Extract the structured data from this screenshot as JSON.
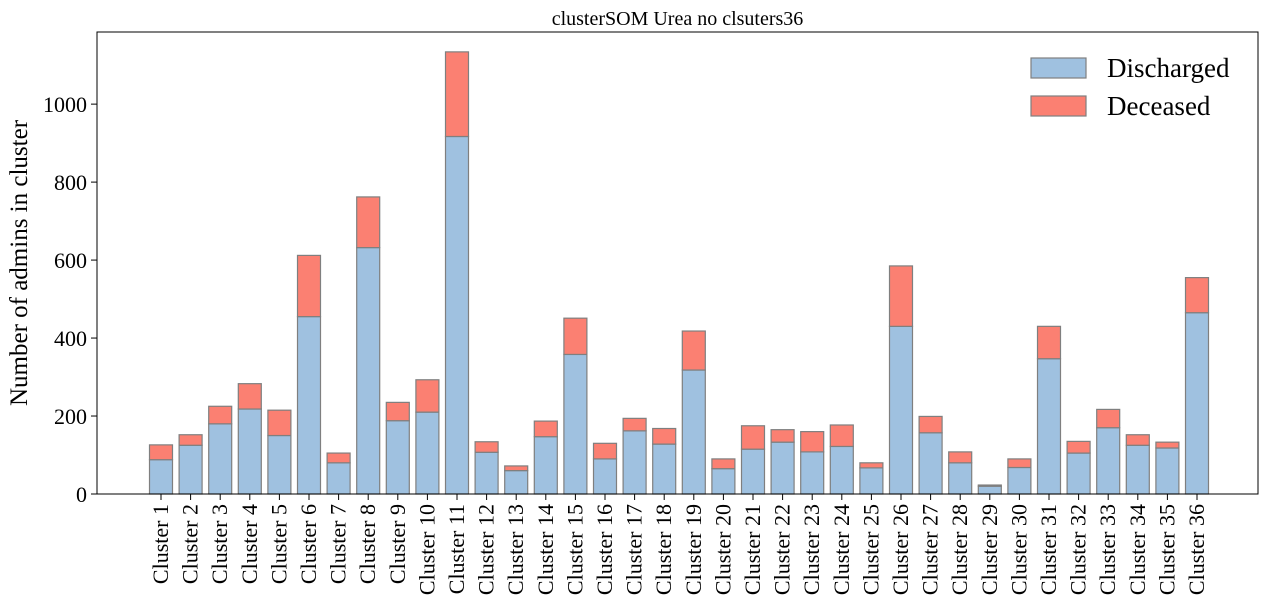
{
  "chart_data": {
    "type": "bar",
    "stacked": true,
    "title": "clusterSOM Urea no clsuters36",
    "xlabel": "",
    "ylabel": "Number of admins in cluster",
    "ylim": [
      0,
      1185
    ],
    "yticks": [
      0,
      200,
      400,
      600,
      800,
      1000
    ],
    "grid": false,
    "legend_position": "top-right",
    "categories": [
      "Cluster 1",
      "Cluster 2",
      "Cluster 3",
      "Cluster 4",
      "Cluster 5",
      "Cluster 6",
      "Cluster 7",
      "Cluster 8",
      "Cluster 9",
      "Cluster 10",
      "Cluster 11",
      "Cluster 12",
      "Cluster 13",
      "Cluster 14",
      "Cluster 15",
      "Cluster 16",
      "Cluster 17",
      "Cluster 18",
      "Cluster 19",
      "Cluster 20",
      "Cluster 21",
      "Cluster 22",
      "Cluster 23",
      "Cluster 24",
      "Cluster 25",
      "Cluster 26",
      "Cluster 27",
      "Cluster 28",
      "Cluster 29",
      "Cluster 30",
      "Cluster 31",
      "Cluster 32",
      "Cluster 33",
      "Cluster 34",
      "Cluster 35",
      "Cluster 36"
    ],
    "series": [
      {
        "name": "Discharged",
        "color": "#9fc1e0",
        "values": [
          88,
          125,
          180,
          218,
          150,
          455,
          80,
          632,
          188,
          210,
          917,
          107,
          60,
          147,
          358,
          90,
          162,
          128,
          318,
          65,
          115,
          133,
          108,
          122,
          67,
          430,
          157,
          80,
          20,
          68,
          347,
          105,
          170,
          125,
          118,
          465
        ]
      },
      {
        "name": "Deceased",
        "color": "#fb8072",
        "values": [
          38,
          27,
          45,
          65,
          65,
          157,
          25,
          130,
          47,
          83,
          217,
          27,
          12,
          40,
          93,
          40,
          32,
          40,
          100,
          25,
          60,
          32,
          52,
          55,
          13,
          155,
          42,
          28,
          3,
          22,
          83,
          30,
          47,
          27,
          15,
          90
        ]
      }
    ]
  }
}
